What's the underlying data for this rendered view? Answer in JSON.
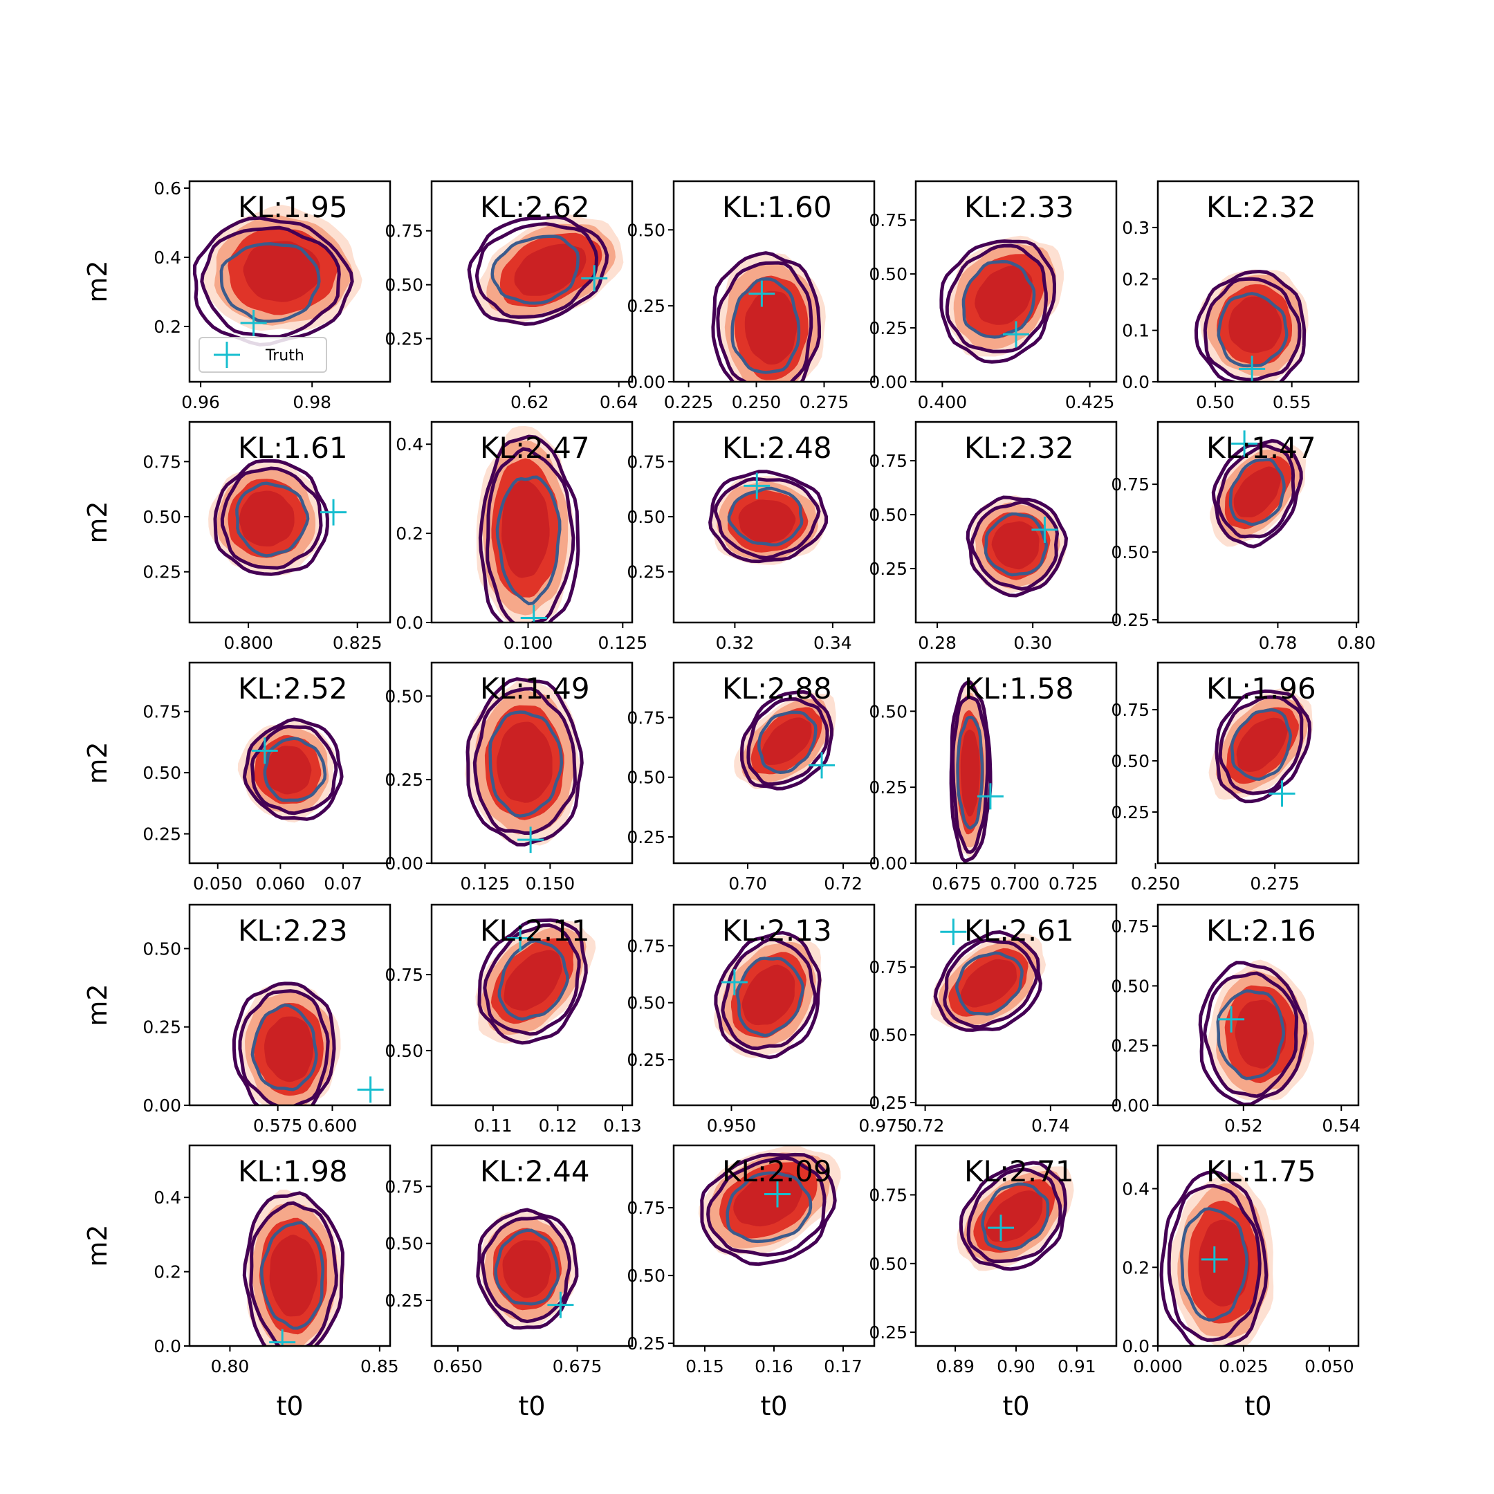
{
  "figure": {
    "xlabel": "t0",
    "ylabel": "m2",
    "legend_label": "Truth",
    "colors": {
      "truth_marker": "#17becf",
      "contour_outer": "#440154",
      "contour_inner": "#3b5b8c",
      "fill_light": "#fde0d2",
      "fill_mid": "#f6a88a",
      "fill_dark": "#e03428",
      "fill_core": "#cb2123"
    }
  },
  "chart_data": [
    {
      "type": "scatter",
      "kl": "KL:1.95",
      "xlim": [
        0.958,
        0.994
      ],
      "ylim": [
        0.04,
        0.62
      ],
      "xticks": [
        "0.96",
        "0.98"
      ],
      "xtick_values": [
        0.96,
        0.98
      ],
      "yticks": [
        "0.2",
        "0.4",
        "0.6"
      ],
      "ytick_values": [
        0.2,
        0.4,
        0.6
      ],
      "truth": [
        0.9695,
        0.21
      ],
      "center": [
        0.9725,
        0.33
      ],
      "spread": [
        0.0125,
        0.16
      ],
      "tilt": 0,
      "shift": [
        0.002,
        0.03
      ]
    },
    {
      "type": "scatter",
      "kl": "KL:2.62",
      "xlim": [
        0.598,
        0.643
      ],
      "ylim": [
        0.05,
        0.98
      ],
      "xticks": [
        "0.62",
        "0.64"
      ],
      "xtick_values": [
        0.62,
        0.64
      ],
      "yticks": [
        "0.25",
        "0.50",
        "0.75"
      ],
      "ytick_values": [
        0.25,
        0.5,
        0.75
      ],
      "truth": [
        0.6345,
        0.53
      ],
      "center": [
        0.6215,
        0.57
      ],
      "spread": [
        0.0135,
        0.22
      ],
      "tilt": -0.6,
      "shift": [
        0.003,
        0.0
      ]
    },
    {
      "type": "scatter",
      "kl": "KL:1.60",
      "xlim": [
        0.2195,
        0.2935
      ],
      "ylim": [
        0.0,
        0.66
      ],
      "xticks": [
        "0.225",
        "0.250",
        "0.275"
      ],
      "xtick_values": [
        0.225,
        0.25,
        0.275
      ],
      "yticks": [
        "0.00",
        "0.25",
        "0.50"
      ],
      "ytick_values": [
        0,
        0.25,
        0.5
      ],
      "truth": [
        0.252,
        0.29
      ],
      "center": [
        0.2535,
        0.18
      ],
      "spread": [
        0.0175,
        0.22
      ],
      "tilt": 0,
      "shift": [
        0.002,
        0.0
      ]
    },
    {
      "type": "scatter",
      "kl": "KL:2.33",
      "xlim": [
        0.3955,
        0.4295
      ],
      "ylim": [
        0.0,
        0.93
      ],
      "xticks": [
        "0.400",
        "0.425"
      ],
      "xtick_values": [
        0.4,
        0.425
      ],
      "yticks": [
        "0.00",
        "0.25",
        "0.50",
        "0.75"
      ],
      "ytick_values": [
        0,
        0.25,
        0.5,
        0.75
      ],
      "truth": [
        0.4125,
        0.22
      ],
      "center": [
        0.4095,
        0.38
      ],
      "spread": [
        0.0085,
        0.25
      ],
      "tilt": -0.3,
      "shift": [
        0.001,
        0.02
      ]
    },
    {
      "type": "scatter",
      "kl": "KL:2.32",
      "xlim": [
        0.4625,
        0.5935
      ],
      "ylim": [
        0.0,
        0.39
      ],
      "xticks": [
        "0.50",
        "0.55"
      ],
      "xtick_values": [
        0.5,
        0.55
      ],
      "yticks": [
        "0.0",
        "0.1",
        "0.2",
        "0.3"
      ],
      "ytick_values": [
        0,
        0.1,
        0.2,
        0.3
      ],
      "truth": [
        0.524,
        0.025
      ],
      "center": [
        0.524,
        0.1
      ],
      "spread": [
        0.0315,
        0.1
      ],
      "tilt": 0,
      "shift": [
        0.002,
        0.01
      ]
    },
    {
      "type": "scatter",
      "kl": "KL:1.61",
      "xlim": [
        0.7865,
        0.8325
      ],
      "ylim": [
        0.02,
        0.93
      ],
      "xticks": [
        "0.800",
        "0.825"
      ],
      "xtick_values": [
        0.8,
        0.825
      ],
      "yticks": [
        "0.25",
        "0.50",
        "0.75"
      ],
      "ytick_values": [
        0.25,
        0.5,
        0.75
      ],
      "truth": [
        0.8195,
        0.52
      ],
      "center": [
        0.8052,
        0.49
      ],
      "spread": [
        0.0115,
        0.23
      ],
      "tilt": 0,
      "shift": [
        -0.001,
        0.0
      ]
    },
    {
      "type": "scatter",
      "kl": "KL:2.47",
      "xlim": [
        0.0745,
        0.1275
      ],
      "ylim": [
        0.0,
        0.45
      ],
      "xticks": [
        "0.100",
        "0.125"
      ],
      "xtick_values": [
        0.1,
        0.125
      ],
      "yticks": [
        "0.0",
        "0.2",
        "0.4"
      ],
      "ytick_values": [
        0,
        0.2,
        0.4
      ],
      "truth": [
        0.1015,
        0.01
      ],
      "center": [
        0.1002,
        0.19
      ],
      "spread": [
        0.0115,
        0.2
      ],
      "tilt": 0,
      "shift": [
        -0.001,
        0.02
      ]
    },
    {
      "type": "scatter",
      "kl": "KL:2.48",
      "xlim": [
        0.3075,
        0.3485
      ],
      "ylim": [
        0.02,
        0.93
      ],
      "xticks": [
        "0.32",
        "0.34"
      ],
      "xtick_values": [
        0.32,
        0.34
      ],
      "yticks": [
        "0.25",
        "0.50",
        "0.75"
      ],
      "ytick_values": [
        0.25,
        0.5,
        0.75
      ],
      "truth": [
        0.3245,
        0.64
      ],
      "center": [
        0.3265,
        0.5
      ],
      "spread": [
        0.0105,
        0.18
      ],
      "tilt": 0,
      "shift": [
        0.0,
        -0.02
      ]
    },
    {
      "type": "scatter",
      "kl": "KL:2.32",
      "xlim": [
        0.2755,
        0.3175
      ],
      "ylim": [
        0.0,
        0.93
      ],
      "xticks": [
        "0.28",
        "0.30"
      ],
      "xtick_values": [
        0.28,
        0.3
      ],
      "yticks": [
        "0.25",
        "0.50",
        "0.75"
      ],
      "ytick_values": [
        0.25,
        0.5,
        0.75
      ],
      "truth": [
        0.3025,
        0.43
      ],
      "center": [
        0.2965,
        0.36
      ],
      "spread": [
        0.009,
        0.2
      ],
      "tilt": 0,
      "shift": [
        0.0,
        0.0
      ]
    },
    {
      "type": "scatter",
      "kl": "KL:1.47",
      "xlim": [
        0.7495,
        0.8005
      ],
      "ylim": [
        0.24,
        0.98
      ],
      "xticks": [
        "0.78",
        "0.80"
      ],
      "xtick_values": [
        0.78,
        0.8
      ],
      "yticks": [
        "0.25",
        "0.50",
        "0.75"
      ],
      "ytick_values": [
        0.25,
        0.5,
        0.75
      ],
      "truth": [
        0.7715,
        0.9
      ],
      "center": [
        0.7748,
        0.72
      ],
      "spread": [
        0.0095,
        0.17
      ],
      "tilt": -0.5,
      "shift": [
        0.0,
        0.0
      ]
    },
    {
      "type": "scatter",
      "kl": "KL:2.52",
      "xlim": [
        0.0455,
        0.0775
      ],
      "ylim": [
        0.13,
        0.95
      ],
      "xticks": [
        "0.050",
        "0.060",
        "0.07"
      ],
      "xtick_values": [
        0.05,
        0.06,
        0.07
      ],
      "yticks": [
        "0.25",
        "0.50",
        "0.75"
      ],
      "ytick_values": [
        0.25,
        0.5,
        0.75
      ],
      "truth": [
        0.0575,
        0.59
      ],
      "center": [
        0.0622,
        0.51
      ],
      "spread": [
        0.0068,
        0.18
      ],
      "tilt": 0,
      "shift": [
        -0.001,
        0.0
      ]
    },
    {
      "type": "scatter",
      "kl": "KL:1.49",
      "xlim": [
        0.1045,
        0.1815
      ],
      "ylim": [
        0.0,
        0.6
      ],
      "xticks": [
        "0.125",
        "0.150"
      ],
      "xtick_values": [
        0.125,
        0.15
      ],
      "yticks": [
        "0.00",
        "0.25",
        "0.50"
      ],
      "ytick_values": [
        0,
        0.25,
        0.5
      ],
      "truth": [
        0.1425,
        0.07
      ],
      "center": [
        0.1402,
        0.3
      ],
      "spread": [
        0.0195,
        0.22
      ],
      "tilt": 0,
      "shift": [
        0.0,
        0.0
      ]
    },
    {
      "type": "scatter",
      "kl": "KL:2.88",
      "xlim": [
        0.6845,
        0.7265
      ],
      "ylim": [
        0.14,
        0.98
      ],
      "xticks": [
        "0.70",
        "0.72"
      ],
      "xtick_values": [
        0.7,
        0.72
      ],
      "yticks": [
        "0.25",
        "0.50",
        "0.75"
      ],
      "ytick_values": [
        0.25,
        0.5,
        0.75
      ],
      "truth": [
        0.7155,
        0.55
      ],
      "center": [
        0.7082,
        0.65
      ],
      "spread": [
        0.0082,
        0.18
      ],
      "tilt": -0.6,
      "shift": [
        0.0,
        0.0
      ]
    },
    {
      "type": "scatter",
      "kl": "KL:1.58",
      "xlim": [
        0.6575,
        0.7435
      ],
      "ylim": [
        0.0,
        0.66
      ],
      "xticks": [
        "0.675",
        "0.700",
        "0.725"
      ],
      "xtick_values": [
        0.675,
        0.7,
        0.725
      ],
      "yticks": [
        "0.00",
        "0.25",
        "0.50"
      ],
      "ytick_values": [
        0,
        0.25,
        0.5
      ],
      "truth": [
        0.6895,
        0.22
      ],
      "center": [
        0.6808,
        0.3
      ],
      "spread": [
        0.0075,
        0.26
      ],
      "tilt": 0,
      "shift": [
        0.0,
        0.0
      ]
    },
    {
      "type": "scatter",
      "kl": "KL:1.96",
      "xlim": [
        0.2505,
        0.2925
      ],
      "ylim": [
        0.0,
        0.98
      ],
      "xticks": [
        "0.250",
        "0.275"
      ],
      "xtick_values": [
        0.25,
        0.275
      ],
      "yticks": [
        "0.25",
        "0.50",
        "0.75"
      ],
      "ytick_values": [
        0.25,
        0.5,
        0.75
      ],
      "truth": [
        0.2765,
        0.34
      ],
      "center": [
        0.2722,
        0.58
      ],
      "spread": [
        0.0085,
        0.24
      ],
      "tilt": -0.5,
      "shift": [
        0.0,
        0.0
      ]
    },
    {
      "type": "scatter",
      "kl": "KL:2.23",
      "xlim": [
        0.5345,
        0.6265
      ],
      "ylim": [
        0.0,
        0.64
      ],
      "xticks": [
        "0.575",
        "0.600"
      ],
      "xtick_values": [
        0.575,
        0.6
      ],
      "yticks": [
        "0.00",
        "0.25",
        "0.50"
      ],
      "ytick_values": [
        0,
        0.25,
        0.5
      ],
      "truth": [
        0.6175,
        0.05
      ],
      "center": [
        0.5782,
        0.18
      ],
      "spread": [
        0.0205,
        0.19
      ],
      "tilt": 0,
      "shift": [
        0.002,
        0.0
      ]
    },
    {
      "type": "scatter",
      "kl": "KL:2.11",
      "xlim": [
        0.1005,
        0.1315
      ],
      "ylim": [
        0.32,
        0.98
      ],
      "xticks": [
        "0.11",
        "0.12",
        "0.13"
      ],
      "xtick_values": [
        0.11,
        0.12,
        0.13
      ],
      "yticks": [
        "0.50",
        "0.75"
      ],
      "ytick_values": [
        0.5,
        0.75
      ],
      "truth": [
        0.1142,
        0.87
      ],
      "center": [
        0.1162,
        0.73
      ],
      "spread": [
        0.0072,
        0.18
      ],
      "tilt": -0.5,
      "shift": [
        0.0,
        0.0
      ]
    },
    {
      "type": "scatter",
      "kl": "KL:2.13",
      "xlim": [
        0.9405,
        0.9735
      ],
      "ylim": [
        0.05,
        0.93
      ],
      "xticks": [
        "0.950",
        "0.975"
      ],
      "xtick_values": [
        0.95,
        0.975
      ],
      "yticks": [
        "0.25",
        "0.50",
        "0.75"
      ],
      "ytick_values": [
        0.25,
        0.5,
        0.75
      ],
      "truth": [
        0.9505,
        0.59
      ],
      "center": [
        0.9562,
        0.53
      ],
      "spread": [
        0.0075,
        0.24
      ],
      "tilt": -0.3,
      "shift": [
        0.0,
        0.0
      ]
    },
    {
      "type": "scatter",
      "kl": "KL:2.61",
      "xlim": [
        0.7185,
        0.7505
      ],
      "ylim": [
        0.24,
        0.98
      ],
      "xticks": [
        "0.72",
        "0.74"
      ],
      "xtick_values": [
        0.72,
        0.74
      ],
      "yticks": [
        "0.25",
        "0.50",
        "0.75"
      ],
      "ytick_values": [
        0.25,
        0.5,
        0.75
      ],
      "truth": [
        0.7245,
        0.88
      ],
      "center": [
        0.7302,
        0.69
      ],
      "spread": [
        0.0072,
        0.16
      ],
      "tilt": -0.6,
      "shift": [
        0.0,
        0.0
      ]
    },
    {
      "type": "scatter",
      "kl": "KL:2.16",
      "xlim": [
        0.5025,
        0.5435
      ],
      "ylim": [
        0.0,
        0.84
      ],
      "xticks": [
        "0.52",
        "0.54"
      ],
      "xtick_values": [
        0.52,
        0.54
      ],
      "yticks": [
        "0.00",
        "0.25",
        "0.50",
        "0.75"
      ],
      "ytick_values": [
        0,
        0.25,
        0.5,
        0.75
      ],
      "truth": [
        0.5175,
        0.36
      ],
      "center": [
        0.5215,
        0.3
      ],
      "spread": [
        0.0095,
        0.26
      ],
      "tilt": 0,
      "shift": [
        0.002,
        0.0
      ]
    },
    {
      "type": "scatter",
      "kl": "KL:1.98",
      "xlim": [
        0.7865,
        0.8535
      ],
      "ylim": [
        0.0,
        0.54
      ],
      "xticks": [
        "0.80",
        "0.85"
      ],
      "xtick_values": [
        0.8,
        0.85
      ],
      "yticks": [
        "0.0",
        "0.2",
        "0.4"
      ],
      "ytick_values": [
        0,
        0.2,
        0.4
      ],
      "truth": [
        0.8175,
        0.01
      ],
      "center": [
        0.8212,
        0.19
      ],
      "spread": [
        0.0145,
        0.2
      ],
      "tilt": 0,
      "shift": [
        0.0,
        0.0
      ]
    },
    {
      "type": "scatter",
      "kl": "KL:2.44",
      "xlim": [
        0.6445,
        0.6865
      ],
      "ylim": [
        0.05,
        0.93
      ],
      "xticks": [
        "0.650",
        "0.675"
      ],
      "xtick_values": [
        0.65,
        0.675
      ],
      "yticks": [
        "0.25",
        "0.50",
        "0.75"
      ],
      "ytick_values": [
        0.25,
        0.5,
        0.75
      ],
      "truth": [
        0.6715,
        0.23
      ],
      "center": [
        0.6645,
        0.39
      ],
      "spread": [
        0.0092,
        0.23
      ],
      "tilt": 0,
      "shift": [
        0.0,
        0.0
      ]
    },
    {
      "type": "scatter",
      "kl": "KL:2.09",
      "xlim": [
        0.1455,
        0.1745
      ],
      "ylim": [
        0.24,
        0.98
      ],
      "xticks": [
        "0.15",
        "0.16",
        "0.17"
      ],
      "xtick_values": [
        0.15,
        0.16,
        0.17
      ],
      "yticks": [
        "0.25",
        "0.50",
        "0.75"
      ],
      "ytick_values": [
        0.25,
        0.5,
        0.75
      ],
      "truth": [
        0.1605,
        0.8
      ],
      "center": [
        0.1592,
        0.75
      ],
      "spread": [
        0.0085,
        0.18
      ],
      "tilt": -0.5,
      "shift": [
        0.0,
        0.03
      ]
    },
    {
      "type": "scatter",
      "kl": "KL:2.71",
      "xlim": [
        0.8835,
        0.9165
      ],
      "ylim": [
        0.2,
        0.93
      ],
      "xticks": [
        "0.89",
        "0.90",
        "0.91"
      ],
      "xtick_values": [
        0.89,
        0.9,
        0.91
      ],
      "yticks": [
        "0.25",
        "0.50",
        "0.75"
      ],
      "ytick_values": [
        0.25,
        0.5,
        0.75
      ],
      "truth": [
        0.8975,
        0.63
      ],
      "center": [
        0.8998,
        0.67
      ],
      "spread": [
        0.0075,
        0.17
      ],
      "tilt": -0.6,
      "shift": [
        0.0,
        0.0
      ]
    },
    {
      "type": "scatter",
      "kl": "KL:1.75",
      "xlim": [
        0.0,
        0.0585
      ],
      "ylim": [
        0.0,
        0.51
      ],
      "xticks": [
        "0.000",
        "0.025",
        "0.050"
      ],
      "xtick_values": [
        0,
        0.025,
        0.05
      ],
      "yticks": [
        "0.0",
        "0.2",
        "0.4"
      ],
      "ytick_values": [
        0,
        0.2,
        0.4
      ],
      "truth": [
        0.0165,
        0.22
      ],
      "center": [
        0.0162,
        0.21
      ],
      "spread": [
        0.0135,
        0.2
      ],
      "tilt": 0,
      "shift": [
        0.003,
        0.0
      ]
    }
  ]
}
